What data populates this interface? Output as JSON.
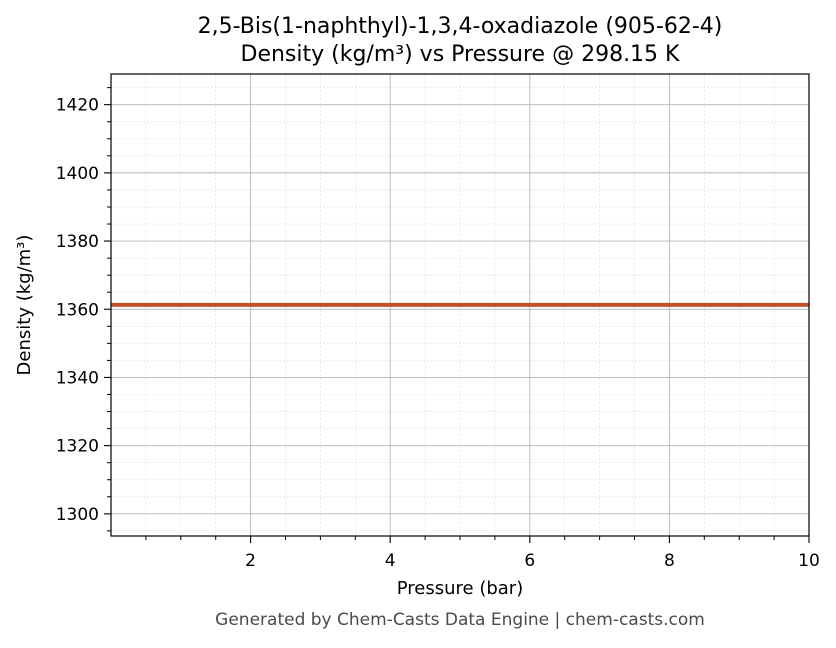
{
  "chart_data": {
    "type": "line",
    "title_line1": "2,5-Bis(1-naphthyl)-1,3,4-oxadiazole (905-62-4)",
    "title_line2": "Density (kg/m³) vs Pressure @ 298.15 K",
    "xlabel": "Pressure (bar)",
    "ylabel": "Density (kg/m³)",
    "xlim": [
      0,
      10
    ],
    "ylim": [
      1293.5,
      1429
    ],
    "x_ticks": [
      2,
      4,
      6,
      8,
      10
    ],
    "y_ticks": [
      1300,
      1320,
      1340,
      1360,
      1380,
      1400,
      1420
    ],
    "x_minor_step": 0.5,
    "y_minor_step": 5,
    "grid": true,
    "series": [
      {
        "color": "#c0522a",
        "x": [
          0,
          10
        ],
        "y": [
          1361.3,
          1361.3
        ]
      }
    ],
    "footer": "Generated by Chem-Casts Data Engine | chem-casts.com"
  }
}
